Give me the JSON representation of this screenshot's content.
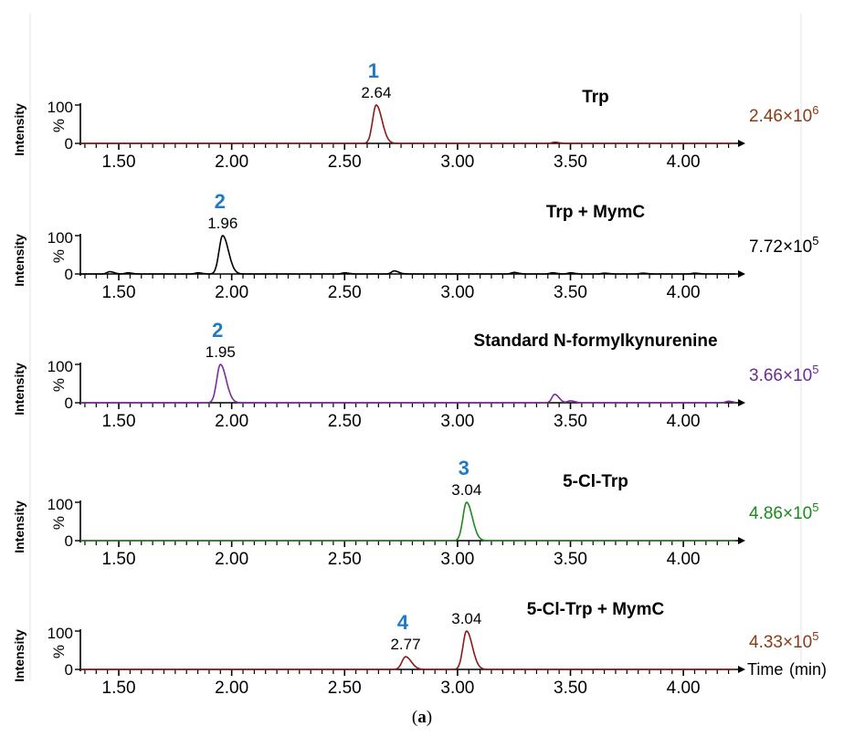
{
  "chart_data": [
    {
      "type": "line",
      "title": "Trp",
      "color": "#8b1a1a",
      "intensity_mantissa": "2.46",
      "intensity_exponent": "6",
      "intensity_color": "#8b3a14",
      "ylabel": "Intensity",
      "yunit": "%",
      "ylim": [
        0,
        100
      ],
      "ytick_labels": [
        "100",
        "0"
      ],
      "xlim": [
        1.33,
        4.23
      ],
      "x_ticks": [
        "1.50",
        "2.00",
        "2.50",
        "3.00",
        "3.50",
        "4.00"
      ],
      "peaks": [
        {
          "x": 2.64,
          "label": "2.64",
          "compound": "1",
          "height": 100
        }
      ],
      "minor_peaks": [
        {
          "x": 3.43,
          "height": 3
        }
      ]
    },
    {
      "type": "line",
      "title": "Trp + MymC",
      "color": "#000000",
      "intensity_mantissa": "7.72",
      "intensity_exponent": "5",
      "intensity_color": "#000000",
      "ylabel": "Intensity",
      "yunit": "%",
      "ylim": [
        0,
        100
      ],
      "ytick_labels": [
        "100",
        "0"
      ],
      "xlim": [
        1.33,
        4.23
      ],
      "x_ticks": [
        "1.50",
        "2.00",
        "2.50",
        "3.00",
        "3.50",
        "4.00"
      ],
      "peaks": [
        {
          "x": 1.96,
          "label": "1.96",
          "compound": "2",
          "height": 100
        }
      ],
      "minor_peaks": [
        {
          "x": 1.46,
          "height": 6
        },
        {
          "x": 1.54,
          "height": 3
        },
        {
          "x": 1.85,
          "height": 3
        },
        {
          "x": 2.5,
          "height": 3
        },
        {
          "x": 2.72,
          "height": 8
        },
        {
          "x": 3.25,
          "height": 4
        },
        {
          "x": 3.42,
          "height": 3
        },
        {
          "x": 3.5,
          "height": 3
        },
        {
          "x": 3.65,
          "height": 2
        },
        {
          "x": 3.82,
          "height": 2
        },
        {
          "x": 4.05,
          "height": 2
        }
      ]
    },
    {
      "type": "line",
      "title": "Standard N-formylkynurenine",
      "color": "#7b2c9e",
      "intensity_mantissa": "3.66",
      "intensity_exponent": "5",
      "intensity_color": "#6a2c91",
      "ylabel": "Intensity",
      "yunit": "%",
      "ylim": [
        0,
        100
      ],
      "ytick_labels": [
        "100",
        "0"
      ],
      "xlim": [
        1.33,
        4.23
      ],
      "x_ticks": [
        "1.50",
        "2.00",
        "2.50",
        "3.00",
        "3.50",
        "4.00"
      ],
      "peaks": [
        {
          "x": 1.95,
          "label": "1.95",
          "compound": "2",
          "height": 100
        }
      ],
      "minor_peaks": [
        {
          "x": 3.43,
          "height": 22
        },
        {
          "x": 3.5,
          "height": 5
        },
        {
          "x": 4.2,
          "height": 4
        }
      ]
    },
    {
      "type": "line",
      "title": "5-Cl-Trp",
      "color": "#1e8a1e",
      "intensity_mantissa": "4.86",
      "intensity_exponent": "5",
      "intensity_color": "#1a8a1a",
      "ylabel": "Intensity",
      "yunit": "%",
      "ylim": [
        0,
        100
      ],
      "ytick_labels": [
        "100",
        "0"
      ],
      "xlim": [
        1.33,
        4.23
      ],
      "x_ticks": [
        "1.50",
        "2.00",
        "2.50",
        "3.00",
        "3.50",
        "4.00"
      ],
      "peaks": [
        {
          "x": 3.04,
          "label": "3.04",
          "compound": "3",
          "height": 100
        }
      ],
      "minor_peaks": []
    },
    {
      "type": "line",
      "title": "5-Cl-Trp + MymC",
      "color": "#8b1a1a",
      "intensity_mantissa": "4.33",
      "intensity_exponent": "5",
      "intensity_color": "#8b3a14",
      "ylabel": "Intensity",
      "yunit": "%",
      "ylim": [
        0,
        100
      ],
      "ytick_labels": [
        "100",
        "0"
      ],
      "xlim": [
        1.33,
        4.23
      ],
      "x_ticks": [
        "1.50",
        "2.00",
        "2.50",
        "3.00",
        "3.50",
        "4.00"
      ],
      "xlabel": "Time",
      "xunit": "(min)",
      "peaks": [
        {
          "x": 2.77,
          "label": "2.77",
          "compound": "4",
          "height": 33
        },
        {
          "x": 3.04,
          "label": "3.04",
          "compound": "",
          "height": 100
        }
      ],
      "minor_peaks": []
    }
  ],
  "caption": {
    "open": "(",
    "letter": "a",
    "close": ")"
  }
}
